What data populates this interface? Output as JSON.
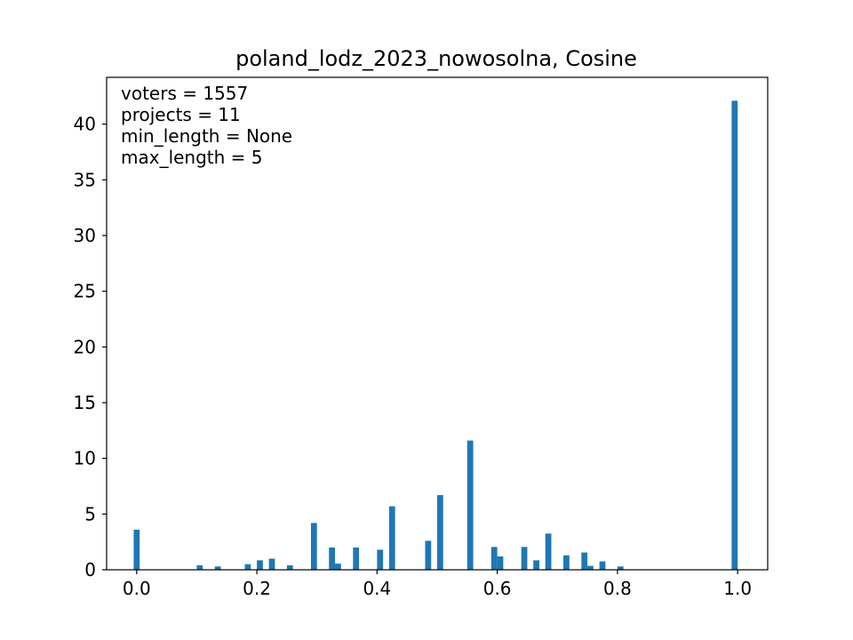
{
  "chart_data": {
    "type": "bar",
    "title": "poland_lodz_2023_nowosolna, Cosine",
    "xlabel": "",
    "ylabel": "",
    "xlim": [
      -0.05,
      1.05
    ],
    "ylim": [
      0,
      44.2
    ],
    "xticks": [
      "0.0",
      "0.2",
      "0.4",
      "0.6",
      "0.8",
      "1.0"
    ],
    "yticks": [
      "0",
      "5",
      "10",
      "15",
      "20",
      "25",
      "30",
      "35",
      "40"
    ],
    "bar_width": 0.01,
    "bar_color": "#1f77b4",
    "annotations": [
      "voters = 1557",
      "projects = 11",
      "min_length = None",
      "max_length = 5"
    ],
    "grid": false,
    "legend": "none",
    "x": [
      0.0,
      0.105,
      0.135,
      0.185,
      0.205,
      0.225,
      0.255,
      0.295,
      0.325,
      0.335,
      0.365,
      0.405,
      0.425,
      0.485,
      0.505,
      0.555,
      0.595,
      0.605,
      0.645,
      0.665,
      0.685,
      0.715,
      0.745,
      0.755,
      0.775,
      0.805,
      0.995
    ],
    "values": [
      3.6,
      0.4,
      0.3,
      0.5,
      0.85,
      1.0,
      0.4,
      4.2,
      2.0,
      0.55,
      2.0,
      1.8,
      5.7,
      2.6,
      6.7,
      11.6,
      2.05,
      1.2,
      2.05,
      0.85,
      3.25,
      1.3,
      1.55,
      0.35,
      0.75,
      0.3,
      42.1
    ]
  }
}
